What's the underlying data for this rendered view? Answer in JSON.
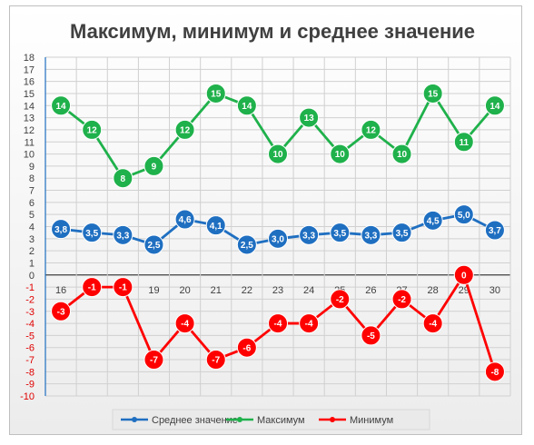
{
  "chart_data": {
    "type": "line",
    "title": "Максимум, минимум и среднее значение",
    "categories": [
      "16",
      "17",
      "18",
      "19",
      "20",
      "21",
      "22",
      "23",
      "24",
      "25",
      "26",
      "27",
      "28",
      "29",
      "30"
    ],
    "ylim": [
      -10,
      18
    ],
    "y_ticks": [
      18,
      17,
      16,
      15,
      14,
      13,
      12,
      11,
      10,
      9,
      8,
      7,
      6,
      5,
      4,
      3,
      2,
      1,
      0,
      -1,
      -2,
      -3,
      -4,
      -5,
      -6,
      -7,
      -8,
      -9,
      -10
    ],
    "grid": true,
    "legend_position": "bottom",
    "series": [
      {
        "name": "Среднее значение",
        "color": "#1f6fc1",
        "values": [
          3.8,
          3.5,
          3.3,
          2.5,
          4.6,
          4.1,
          2.5,
          3.0,
          3.3,
          3.5,
          3.3,
          3.5,
          4.5,
          5.0,
          3.7
        ],
        "labels": [
          "3,8",
          "3,5",
          "3,3",
          "2,5",
          "4,6",
          "4,1",
          "2,5",
          "3,0",
          "3,3",
          "3,5",
          "3,3",
          "3,5",
          "4,5",
          "5,0",
          "3,7"
        ]
      },
      {
        "name": "Максимум",
        "color": "#1fb14b",
        "values": [
          14,
          12,
          8,
          9,
          12,
          15,
          14,
          10,
          13,
          10,
          12,
          10,
          15,
          11,
          14
        ],
        "labels": [
          "14",
          "12",
          "8",
          "9",
          "12",
          "15",
          "14",
          "10",
          "13",
          "10",
          "12",
          "10",
          "15",
          "11",
          "14"
        ]
      },
      {
        "name": "Минимум",
        "color": "#ff0000",
        "values": [
          -3,
          -1,
          -1,
          -7,
          -4,
          -7,
          -6,
          -4,
          -4,
          -2,
          -5,
          -2,
          -4,
          0,
          -8
        ],
        "labels": [
          "-3",
          "-1",
          "-1",
          "-7",
          "-4",
          "-7",
          "-6",
          "-4",
          "-4",
          "-2",
          "-5",
          "-2",
          "-4",
          "0",
          "-8"
        ]
      }
    ]
  }
}
